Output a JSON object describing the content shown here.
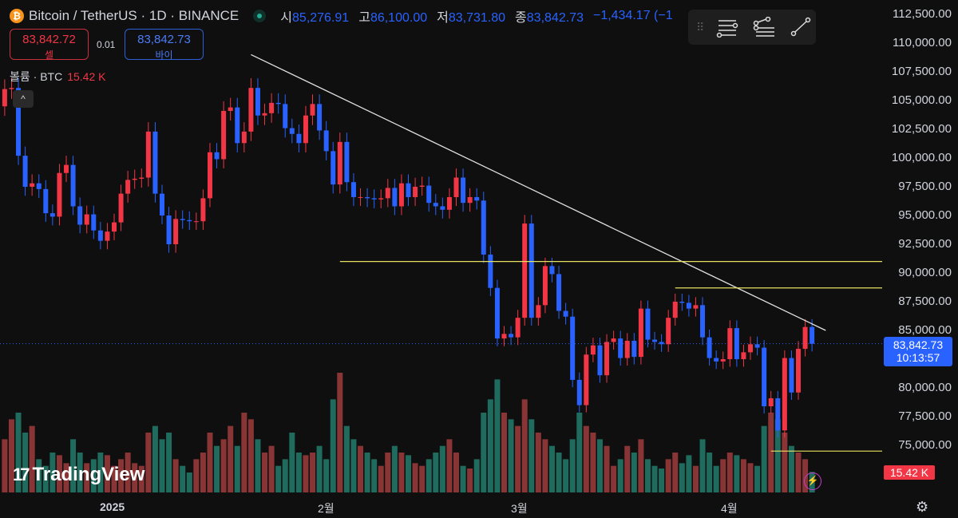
{
  "header": {
    "symbol_title": "Bitcoin / TetherUS · 1D · BINANCE",
    "ohlc": [
      {
        "label": "시",
        "value": "85,276.91"
      },
      {
        "label": "고",
        "value": "86,100.00"
      },
      {
        "label": "저",
        "value": "83,731.80"
      },
      {
        "label": "종",
        "value": "83,842.73"
      }
    ],
    "change": "−1,434.17 (−1"
  },
  "trade": {
    "sell_price": "83,842.72",
    "sell_label": "셀",
    "spread": "0.01",
    "buy_price": "83,842.73",
    "buy_label": "바이"
  },
  "volume_legend": {
    "label": "볼륨 · BTC",
    "value": "15.42 K"
  },
  "collapse_icon": "^",
  "price_axis": [
    "112,500.00",
    "110,000.00",
    "107,500.00",
    "105,000.00",
    "102,500.00",
    "100,000.00",
    "97,500.00",
    "95,000.00",
    "92,500.00",
    "90,000.00",
    "87,500.00",
    "85,000.00",
    "80,000.00",
    "77,500.00",
    "75,000.00"
  ],
  "time_axis": [
    {
      "label": "2025",
      "bold": true
    },
    {
      "label": "2월"
    },
    {
      "label": "3월"
    },
    {
      "label": "4월"
    }
  ],
  "price_tag": {
    "price": "83,842.73",
    "countdown": "10:13:57"
  },
  "volume_tag": "15.42 K",
  "logo": {
    "mark": "17",
    "text": "TradingView"
  },
  "colors": {
    "up": "#f23645",
    "down": "#2962ff",
    "vol_up": "#8a3535",
    "vol_down": "#1f6b5e",
    "trend": "#e0e0e0",
    "hline": "#e8e060"
  },
  "chart_data": {
    "type": "candlestick",
    "start_date": "2024-12-16",
    "price_range": [
      72000,
      112500
    ],
    "closes": [
      106.0,
      106.1,
      100.2,
      97.5,
      97.8,
      97.3,
      95.2,
      94.9,
      98.7,
      99.4,
      95.8,
      94.2,
      95.1,
      93.7,
      92.8,
      93.6,
      94.4,
      96.9,
      98.1,
      98.2,
      98.3,
      102.3,
      96.9,
      95.0,
      92.5,
      94.7,
      94.6,
      94.5,
      94.5,
      96.5,
      100.5,
      99.9,
      104.1,
      104.4,
      101.3,
      102.3,
      106.1,
      103.7,
      103.9,
      104.8,
      104.7,
      102.6,
      102.1,
      101.3,
      103.7,
      104.7,
      102.4,
      100.6,
      97.7,
      101.4,
      97.9,
      96.6,
      96.6,
      96.5,
      96.4,
      96.5,
      97.4,
      95.8,
      97.8,
      96.6,
      97.5,
      97.6,
      96.1,
      95.8,
      95.5,
      96.6,
      98.3,
      96.1,
      96.6,
      96.3,
      91.6,
      88.7,
      84.3,
      84.7,
      84.4,
      86.1,
      94.3,
      86.1,
      87.2,
      90.6,
      89.9,
      86.7,
      86.2,
      80.7,
      78.5,
      82.9,
      83.7,
      81.1,
      84.0,
      84.3,
      82.6,
      84.1,
      82.7,
      86.9,
      84.2,
      84.0,
      83.8,
      86.1,
      87.5,
      87.4,
      86.9,
      87.2,
      84.4,
      82.6,
      82.3,
      82.5,
      85.2,
      82.5,
      83.1,
      83.8,
      83.5,
      78.4,
      79.1,
      76.3,
      82.6,
      79.6,
      83.4,
      85.3,
      83.84
    ],
    "first_open": 104.5,
    "volumes_k": [
      40,
      55,
      60,
      45,
      50,
      25,
      20,
      30,
      28,
      22,
      40,
      30,
      22,
      25,
      30,
      28,
      20,
      25,
      30,
      22,
      20,
      45,
      50,
      40,
      45,
      25,
      20,
      15,
      25,
      30,
      45,
      35,
      40,
      50,
      35,
      60,
      55,
      40,
      30,
      35,
      20,
      25,
      45,
      30,
      28,
      30,
      35,
      25,
      70,
      90,
      50,
      40,
      35,
      30,
      25,
      20,
      30,
      35,
      30,
      28,
      22,
      20,
      25,
      30,
      35,
      40,
      30,
      20,
      18,
      25,
      60,
      70,
      85,
      60,
      55,
      50,
      70,
      55,
      45,
      40,
      35,
      30,
      25,
      40,
      60,
      50,
      45,
      40,
      35,
      20,
      25,
      35,
      30,
      40,
      25,
      20,
      18,
      25,
      30,
      22,
      28,
      20,
      40,
      30,
      20,
      25,
      30,
      28,
      25,
      22,
      20,
      50,
      60,
      55,
      45,
      35,
      30,
      25,
      15.42
    ],
    "trendline": {
      "from": {
        "index": 36,
        "price": 109000
      },
      "to": {
        "index": 120,
        "price": 85000
      }
    },
    "horizontal_lines": [
      {
        "price": 91000,
        "from_index": 49
      },
      {
        "price": 88700,
        "from_index": 98
      },
      {
        "price": 74500,
        "from_index": 112
      }
    ],
    "last_price": 83842.73
  }
}
